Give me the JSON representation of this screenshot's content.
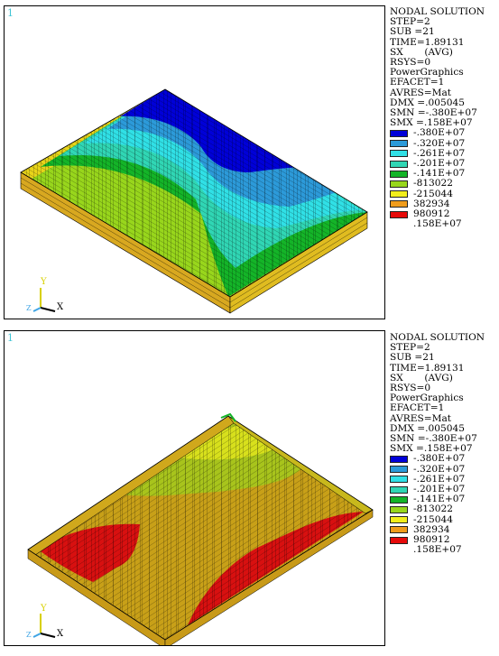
{
  "panels": [
    {
      "window_number": "1",
      "info_lines": [
        "NODAL SOLUTION",
        "STEP=2",
        "SUB =21",
        "TIME=1.89131",
        "SX       (AVG)",
        "RSYS=0",
        "PowerGraphics",
        "EFACET=1",
        "AVRES=Mat",
        "DMX =.005045",
        "SMN =-.380E+07",
        "SMX =.158E+07"
      ],
      "triad_labels": {
        "y": "Y",
        "x": "X",
        "z": "Z"
      }
    },
    {
      "window_number": "1",
      "info_lines": [
        "NODAL SOLUTION",
        "STEP=2",
        "SUB =21",
        "TIME=1.89131",
        "SX       (AVG)",
        "RSYS=0",
        "PowerGraphics",
        "EFACET=1",
        "AVRES=Mat",
        "DMX =.005045",
        "SMN =-.380E+07",
        "SMX =.158E+07"
      ],
      "triad_labels": {
        "y": "Y",
        "x": "X",
        "z": "Z"
      }
    }
  ],
  "contour_legend": {
    "colors": [
      "#0000d8",
      "#2c9ad9",
      "#30e0e6",
      "#30d6b4",
      "#14b428",
      "#98d61c",
      "#f2ee1c",
      "#ef9c1c",
      "#e60a0a"
    ],
    "values": [
      "-.380E+07",
      "-.320E+07",
      "-.261E+07",
      "-.201E+07",
      "-.141E+07",
      "-813022",
      "-215044",
      "382934",
      "980912",
      ".158E+07"
    ]
  }
}
